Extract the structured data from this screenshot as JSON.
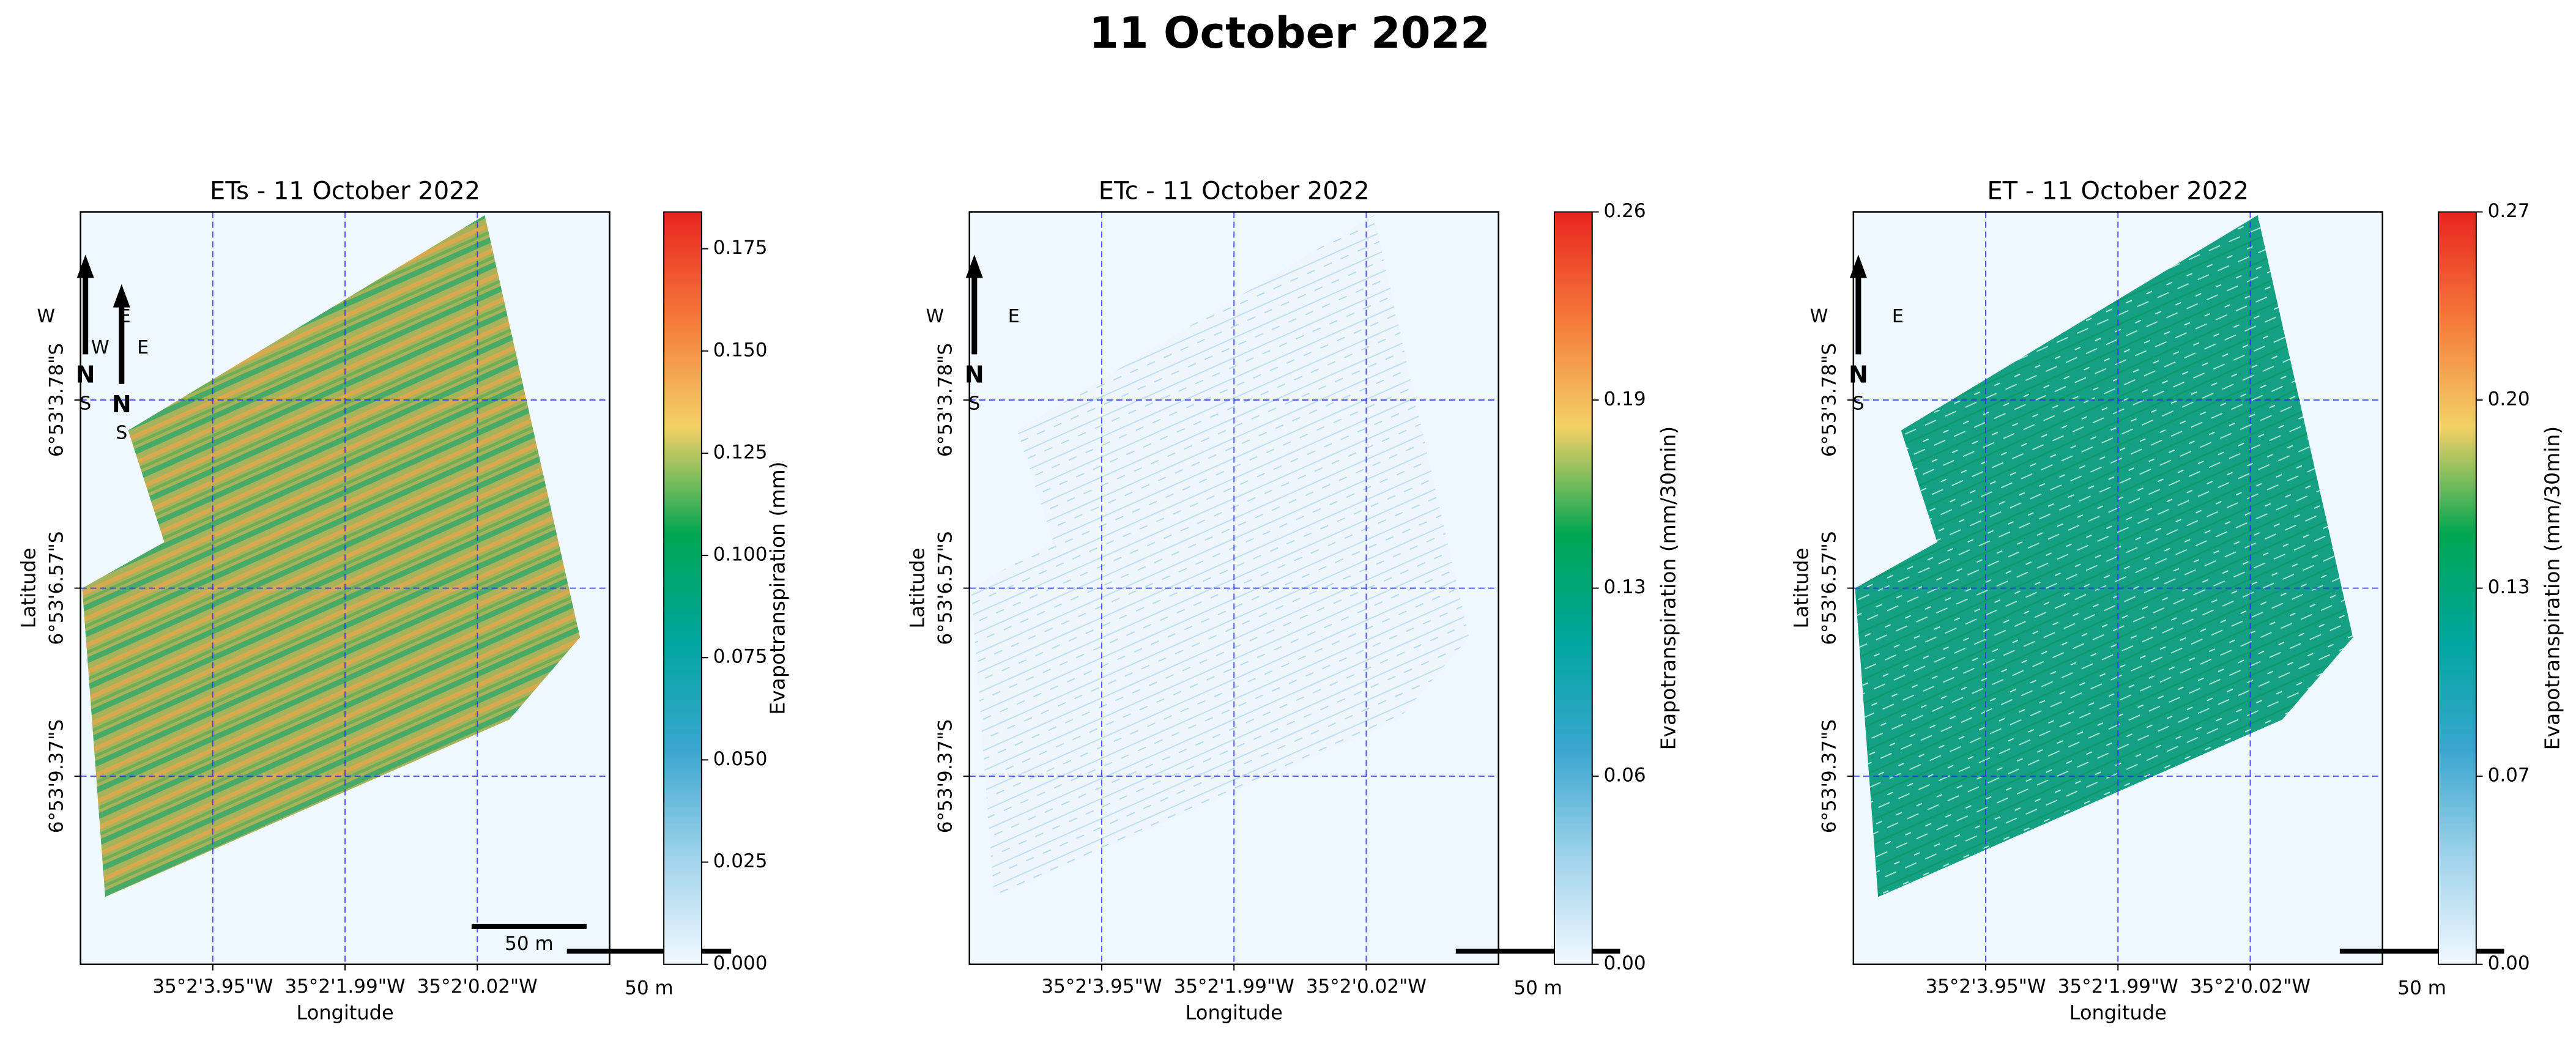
{
  "title": "11 October 2022",
  "chart_data": [
    {
      "type": "raster",
      "title": "ETs - 11 October 2022",
      "xlabel": "Longitude",
      "ylabel": "Latitude",
      "xtick_labels": [
        "35°2'3.95\"W",
        "35°2'1.99\"W",
        "35°2'0.02\"W"
      ],
      "ytick_labels": [
        "6°53'3.78\"S",
        "6°53'6.57\"S",
        "6°53'9.37\"S"
      ],
      "grid": true,
      "colorbar_label": "Evapotranspiration (mm)",
      "clim": [
        0,
        0.184
      ],
      "cticks": [
        {
          "value": 0,
          "label": "0.000"
        },
        0.025,
        {
          "value": 0.05,
          "label": "0.050"
        },
        0.075,
        {
          "value": 0.1,
          "label": "0.100"
        },
        0.125,
        {
          "value": 0.15,
          "label": "0.150"
        },
        0.175
      ],
      "colormap": [
        "#f0f8ff",
        "#9fd3ea",
        "#3aa6d0",
        "#00a6a0",
        "#00a651",
        "#f4d166",
        "#f5793a",
        "#e8251f"
      ],
      "compass": [
        {
          "n": "N",
          "w": "W",
          "e": "E",
          "s": "S"
        },
        {
          "n": "N",
          "w": "W",
          "e": "E",
          "s": "S"
        }
      ],
      "scalebars": [
        "50 m",
        "50 m"
      ]
    },
    {
      "type": "raster",
      "title": "ETc - 11 October 2022",
      "xlabel": "Longitude",
      "ylabel": "Latitude",
      "xtick_labels": [
        "35°2'3.95\"W",
        "35°2'1.99\"W",
        "35°2'0.02\"W"
      ],
      "ytick_labels": [
        "6°53'3.78\"S",
        "6°53'6.57\"S",
        "6°53'9.37\"S"
      ],
      "grid": true,
      "colorbar_label": "Evapotranspiration (mm/30min)",
      "clim": [
        0,
        0.26
      ],
      "cticks": [
        {
          "value": 0,
          "label": "0.00"
        },
        {
          "value": 0.065,
          "label": "0.06"
        },
        0.13,
        {
          "value": 0.195,
          "label": "0.19"
        },
        0.26
      ],
      "colormap": [
        "#f0f8ff",
        "#9fd3ea",
        "#3aa6d0",
        "#00a6a0",
        "#00a651",
        "#f4d166",
        "#f5793a",
        "#e8251f"
      ],
      "compass": [
        {
          "n": "N",
          "w": "W",
          "e": "E",
          "s": "S"
        }
      ],
      "scalebars": [
        "50 m"
      ]
    },
    {
      "type": "raster",
      "title": "ET - 11 October 2022",
      "xlabel": "Longitude",
      "ylabel": "Latitude",
      "xtick_labels": [
        "35°2'3.95\"W",
        "35°2'1.99\"W",
        "35°2'0.02\"W"
      ],
      "ytick_labels": [
        "6°53'3.78\"S",
        "6°53'6.57\"S",
        "6°53'9.37\"S"
      ],
      "grid": true,
      "colorbar_label": "Evapotranspiration (mm/30min)",
      "clim": [
        0,
        0.27
      ],
      "cticks": [
        {
          "value": 0,
          "label": "0.00"
        },
        {
          "value": 0.0675,
          "label": "0.07"
        },
        {
          "value": 0.135,
          "label": "0.13"
        },
        {
          "value": 0.2025,
          "label": "0.20"
        },
        0.27
      ],
      "colormap": [
        "#f0f8ff",
        "#9fd3ea",
        "#3aa6d0",
        "#00a6a0",
        "#00a651",
        "#f4d166",
        "#f5793a",
        "#e8251f"
      ],
      "compass": [
        {
          "n": "N",
          "w": "W",
          "e": "E",
          "s": "S"
        }
      ],
      "scalebars": [
        "50 m"
      ]
    }
  ]
}
